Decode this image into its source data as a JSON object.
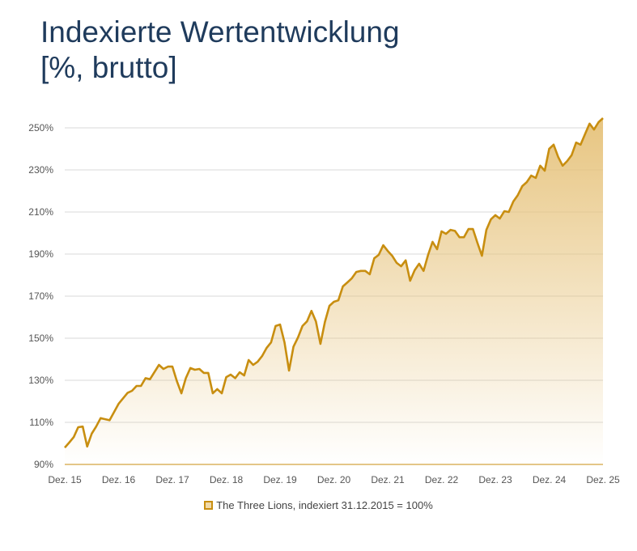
{
  "chart_data": {
    "type": "area",
    "title_lines": [
      "Indexierte Wertentwicklung",
      "[%, brutto]"
    ],
    "xlabel": "",
    "ylabel": "",
    "ylim": [
      90,
      250
    ],
    "y_ticks": [
      "90%",
      "110%",
      "130%",
      "150%",
      "170%",
      "190%",
      "210%",
      "230%",
      "250%"
    ],
    "x_ticks": [
      "Dez. 15",
      "Dez. 16",
      "Dez. 17",
      "Dez. 18",
      "Dez. 19",
      "Dez. 20",
      "Dez. 21",
      "Dez. 22",
      "Dez. 23",
      "Dez. 24",
      "Dez. 25"
    ],
    "grid": true,
    "legend_position": "bottom",
    "line_color": "#c88e10",
    "fill_color": "#e6c27a",
    "series": [
      {
        "name": "The Three Lions, indexiert 31.12.2015 = 100%",
        "x": [
          "2015-12",
          "2016-01",
          "2016-02",
          "2016-03",
          "2016-04",
          "2016-05",
          "2016-06",
          "2016-07",
          "2016-08",
          "2016-10",
          "2016-12",
          "2017-02",
          "2017-03",
          "2017-04",
          "2017-05",
          "2017-06",
          "2017-07",
          "2017-09",
          "2017-10",
          "2017-11",
          "2017-12",
          "2018-01",
          "2018-02",
          "2018-03",
          "2018-04",
          "2018-05",
          "2018-06",
          "2018-07",
          "2018-08",
          "2018-09",
          "2018-10",
          "2018-11",
          "2018-12",
          "2019-01",
          "2019-02",
          "2019-03",
          "2019-04",
          "2019-05",
          "2019-06",
          "2019-07",
          "2019-08",
          "2019-09",
          "2019-10",
          "2019-11",
          "2019-12",
          "2020-01",
          "2020-02",
          "2020-03",
          "2020-04",
          "2020-05",
          "2020-06",
          "2020-07",
          "2020-08",
          "2020-09",
          "2020-10",
          "2020-11",
          "2020-12",
          "2021-01",
          "2021-02",
          "2021-03",
          "2021-04",
          "2021-05",
          "2021-06",
          "2021-07",
          "2021-08",
          "2021-09",
          "2021-10",
          "2021-11",
          "2021-12",
          "2022-01",
          "2022-02",
          "2022-03",
          "2022-04",
          "2022-05",
          "2022-06",
          "2022-07",
          "2022-08",
          "2022-09",
          "2022-10",
          "2022-11",
          "2022-12",
          "2023-01",
          "2023-02",
          "2023-03",
          "2023-04",
          "2023-05",
          "2023-06",
          "2023-07",
          "2023-08",
          "2023-09",
          "2023-10",
          "2023-11",
          "2023-12",
          "2024-01",
          "2024-02",
          "2024-03",
          "2024-04",
          "2024-05",
          "2024-06",
          "2024-07",
          "2024-08",
          "2024-09",
          "2024-10",
          "2024-11",
          "2024-12",
          "2025-01",
          "2025-02",
          "2025-03",
          "2025-04",
          "2025-05",
          "2025-06",
          "2025-07",
          "2025-08",
          "2025-09",
          "2025-10",
          "2025-11",
          "2025-12"
        ],
        "values": [
          98,
          100.4,
          103,
          107.7,
          108,
          98.5,
          104.6,
          108,
          112,
          111,
          118.8,
          124,
          125,
          127.3,
          127.3,
          131,
          130.5,
          137.3,
          135.4,
          136.5,
          136.5,
          129.6,
          123.8,
          131,
          135.8,
          135,
          135.4,
          133.5,
          133.5,
          123.8,
          125.8,
          123.8,
          131.5,
          132.7,
          131,
          133.8,
          132.3,
          139.6,
          137.3,
          138.8,
          141.5,
          145.4,
          148,
          155.8,
          156.5,
          148,
          134.6,
          146,
          150.4,
          155.8,
          158,
          163,
          158,
          147.3,
          157.7,
          165.4,
          167.3,
          168,
          174.6,
          176.5,
          178.5,
          181.5,
          182,
          182,
          180.4,
          188,
          189.6,
          194.2,
          191.5,
          189.2,
          185.8,
          184.2,
          187,
          177.3,
          182.3,
          185.4,
          182,
          189.6,
          195.8,
          192.3,
          200.8,
          199.6,
          201.5,
          201,
          198,
          198,
          201.9,
          201.9,
          195.4,
          189.2,
          201.5,
          206.5,
          208.5,
          206.9,
          210.4,
          210,
          215,
          218,
          222.3,
          224.2,
          227.3,
          226.2,
          232,
          229.6,
          240,
          242,
          236.2,
          232,
          234.2,
          237,
          243,
          242,
          247,
          252,
          249.2,
          252.7,
          254.6
        ]
      }
    ]
  }
}
